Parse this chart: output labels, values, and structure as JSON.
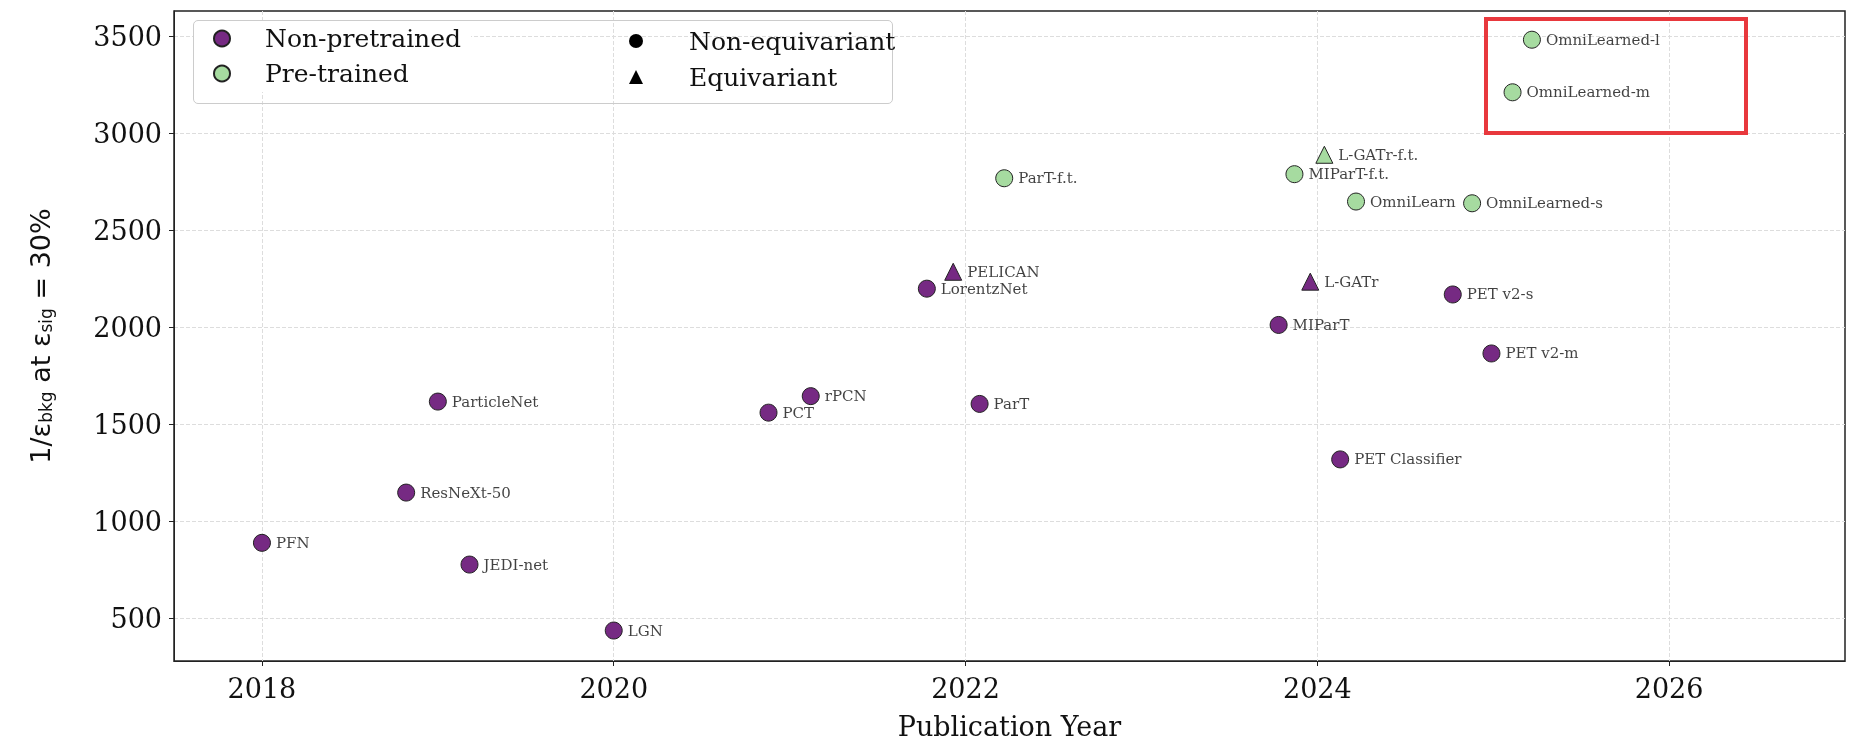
{
  "chart_data": {
    "type": "scatter",
    "xlabel": "Publication Year",
    "ylabel": "1/ε$_{bkg}$ at ε$_{sig}$ = 30%",
    "xlim": [
      2017.5,
      2027
    ],
    "xticks": [
      2018,
      2020,
      2022,
      2024,
      2026
    ],
    "ylim": [
      280,
      3630
    ],
    "yticks": [
      500,
      1000,
      1500,
      2000,
      2500,
      3000,
      3500
    ],
    "grid": true,
    "legend": "top left",
    "series": [
      {
        "name": "Non-pretrained",
        "color": "#762a83",
        "marker": "circle",
        "x": [
          2018.0,
          2018.82,
          2019.0,
          2019.18,
          2020.0,
          2020.88,
          2021.12,
          2021.78,
          2022.08,
          2023.78,
          2024.13,
          2024.77,
          2024.99
        ],
        "values": [
          889,
          1148,
          1617,
          777,
          437,
          1560,
          1645,
          2199,
          1605,
          2012,
          1319,
          2169,
          1865
        ]
      },
      {
        "name": "Pre-trained",
        "color": "#a6dba0",
        "marker": "circle",
        "x": [
          2022.22,
          2023.87,
          2024.22,
          2024.88,
          2025.11,
          2025.22
        ],
        "values": [
          2768,
          2789,
          2648,
          2639,
          3211,
          3482
        ]
      },
      {
        "marker": "triangle",
        "x": [
          2021.93,
          2023.96,
          2024.04
        ],
        "values": [
          2286,
          2235,
          2889
        ],
        "colors": [
          "#762a83",
          "#762a83",
          "#a6dba0"
        ]
      }
    ],
    "annotations": [
      "Non-equivariant",
      "Equivariant",
      {
        "text": "PFN",
        "x": 2018.0,
        "y": 889
      },
      {
        "text": "ResNeXt-50",
        "x": 2018.82,
        "y": 1148
      },
      {
        "text": "ParticleNet",
        "x": 2019.0,
        "y": 1617
      },
      {
        "text": "JEDI-net",
        "x": 2019.18,
        "y": 777
      },
      {
        "text": "LGN",
        "x": 2020.0,
        "y": 437
      },
      {
        "text": "PCT",
        "x": 2020.88,
        "y": 1560
      },
      {
        "text": "rPCN",
        "x": 2021.12,
        "y": 1645
      },
      {
        "text": "LorentzNet",
        "x": 2021.78,
        "y": 2199
      },
      {
        "text": "PELICAN",
        "x": 2021.93,
        "y": 2286
      },
      {
        "text": "ParT",
        "x": 2022.08,
        "y": 1605
      },
      {
        "text": "ParT-f.t.",
        "x": 2022.22,
        "y": 2768
      },
      {
        "text": "MIParT",
        "x": 2023.78,
        "y": 2012
      },
      {
        "text": "L-GATr",
        "x": 2023.96,
        "y": 2235
      },
      {
        "text": "L-GATr-f.t.",
        "x": 2024.04,
        "y": 2889
      },
      {
        "text": "MIParT-f.t.",
        "x": 2023.87,
        "y": 2789
      },
      {
        "text": "OmniLearn",
        "x": 2024.22,
        "y": 2648
      },
      {
        "text": "PET Classifier",
        "x": 2024.13,
        "y": 1319
      },
      {
        "text": "OmniLearned-s",
        "x": 2024.88,
        "y": 2639
      },
      {
        "text": "PET v2-s",
        "x": 2024.77,
        "y": 2169
      },
      {
        "text": "PET v2-m",
        "x": 2024.99,
        "y": 1865
      },
      {
        "text": "OmniLearned-m",
        "x": 2025.11,
        "y": 3211
      },
      {
        "text": "OmniLearned-l",
        "x": 2025.22,
        "y": 3482
      }
    ]
  }
}
